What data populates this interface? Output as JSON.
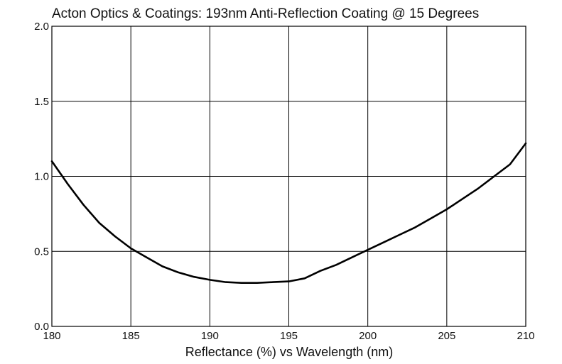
{
  "chart_data": {
    "type": "line",
    "title": "Acton Optics & Coatings: 193nm Anti-Reflection Coating @ 15 Degrees",
    "xlabel": "Reflectance (%)  vs  Wavelength (nm)",
    "ylabel": "",
    "xlim": [
      180,
      210
    ],
    "ylim": [
      0.0,
      2.0
    ],
    "x_ticks": [
      "180",
      "185",
      "190",
      "195",
      "200",
      "205",
      "210"
    ],
    "y_ticks": [
      "0.0",
      "0.5",
      "1.0",
      "1.5",
      "2.0"
    ],
    "grid": true,
    "colors": {
      "line": "#000000",
      "grid": "#000000",
      "background": "#ffffff"
    },
    "series": [
      {
        "x": [
          180,
          181,
          182,
          183,
          184,
          185,
          186,
          187,
          188,
          189,
          190,
          191,
          192,
          193,
          194,
          195,
          196,
          197,
          198,
          199,
          200,
          201,
          202,
          203,
          204,
          205,
          206,
          207,
          208,
          209,
          210
        ],
        "values": [
          1.1,
          0.95,
          0.81,
          0.69,
          0.6,
          0.52,
          0.46,
          0.4,
          0.36,
          0.33,
          0.31,
          0.295,
          0.29,
          0.29,
          0.295,
          0.3,
          0.32,
          0.37,
          0.41,
          0.46,
          0.51,
          0.56,
          0.61,
          0.66,
          0.72,
          0.78,
          0.85,
          0.92,
          1.0,
          1.08,
          1.22
        ]
      }
    ]
  }
}
